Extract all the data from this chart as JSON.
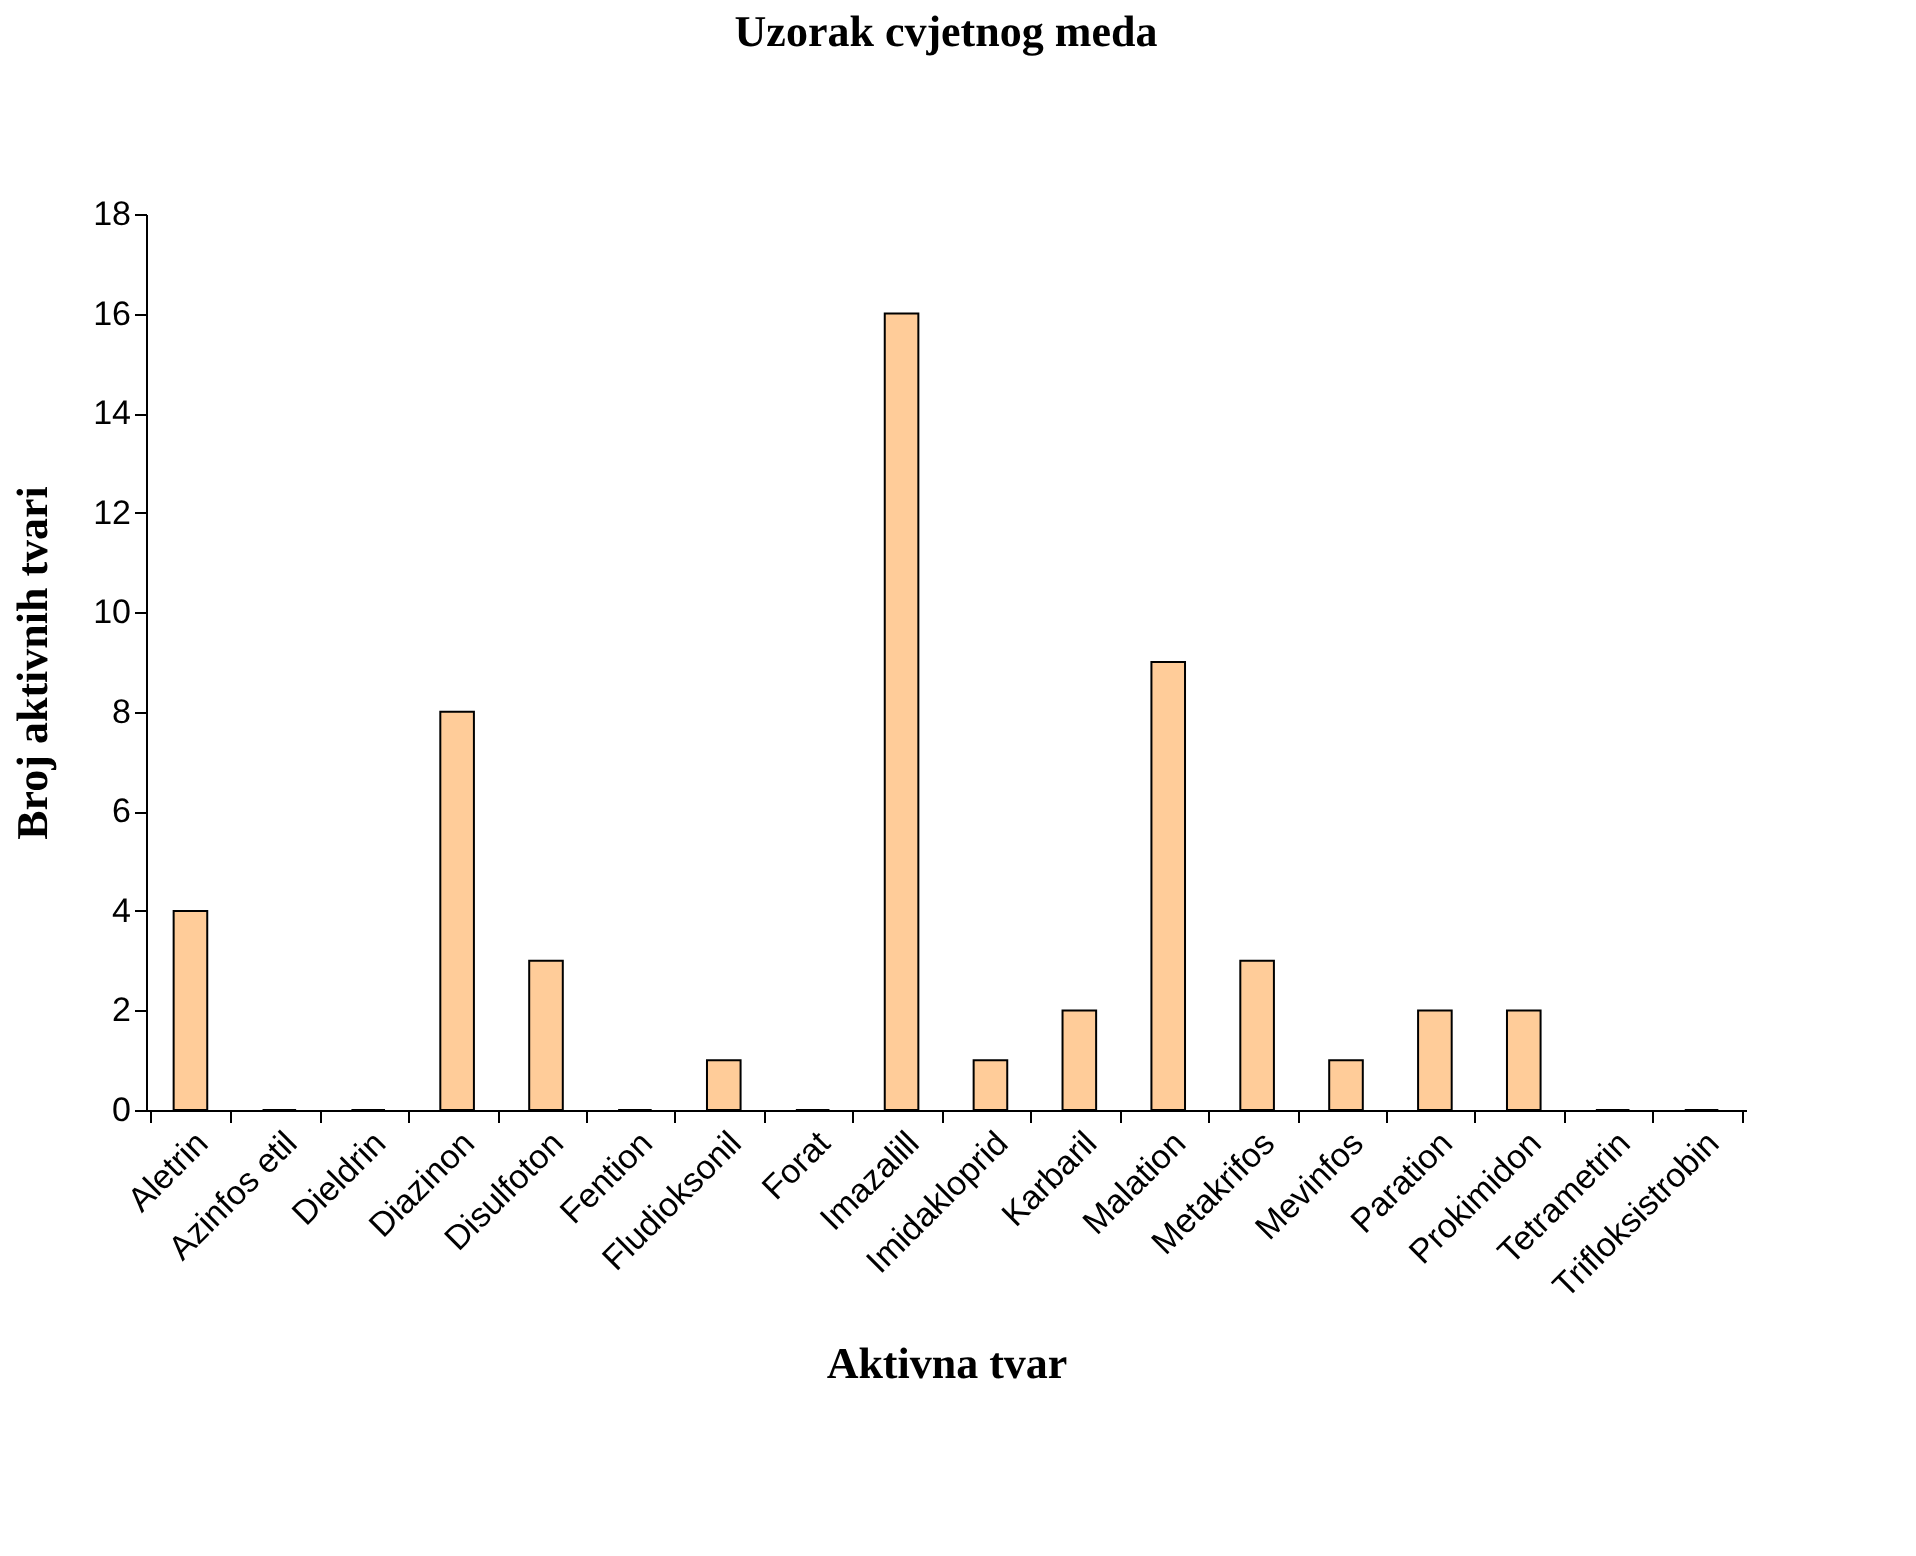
{
  "chart_data": {
    "type": "bar",
    "title": "Uzorak cvjetnog meda",
    "xlabel": "Aktivna tvar",
    "ylabel": "Broj aktivnih tvari",
    "categories": [
      "Aletrin",
      "Azinfos etil",
      "Dieldrin",
      "Diazinon",
      "Disulfoton",
      "Fention",
      "Fludioksonil",
      "Forat",
      "Imazalill",
      "Imidakloprid",
      "Karbaril",
      "Malation",
      "Metakrifos",
      "Mevinfos",
      "Paration",
      "Prokimidon",
      "Tetrametrin",
      "Trifloksistrobin"
    ],
    "values": [
      4,
      0,
      0,
      8,
      3,
      0,
      1,
      0,
      16,
      1,
      2,
      9,
      3,
      1,
      2,
      2,
      0,
      0
    ],
    "color": "#ffcc99",
    "ylim": [
      0,
      18
    ],
    "yticks": [
      0,
      2,
      4,
      6,
      8,
      10,
      12,
      14,
      16,
      18
    ],
    "grid": false
  }
}
